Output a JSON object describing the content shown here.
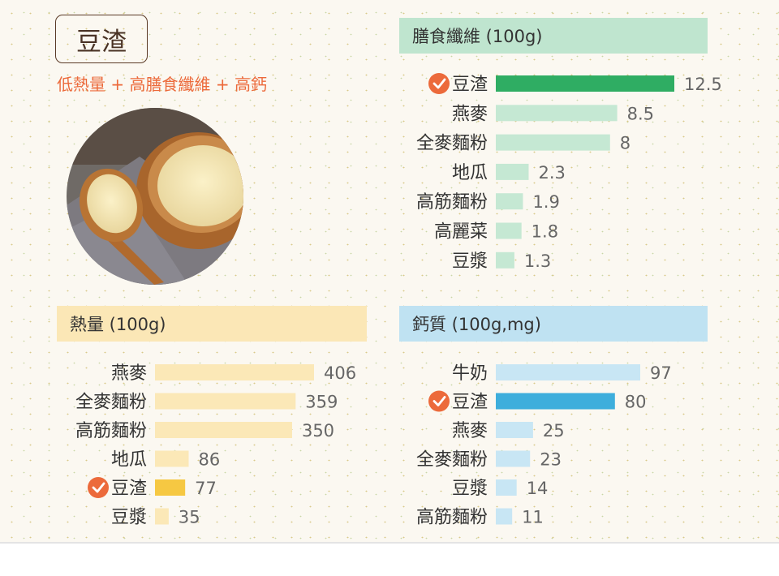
{
  "title": "豆渣",
  "subtitle": "低熱量 + 高膳食纖維 + 高鈣",
  "colors": {
    "highlight_icon": "#ec6a3b",
    "fiber_bar": "#c5e8d3",
    "fiber_highlight": "#2fad63",
    "calorie_bar": "#fbe8b7",
    "calorie_highlight": "#f6c842",
    "calcium_bar": "#c8e6f4",
    "calcium_highlight": "#3eaedc"
  },
  "chart_data": [
    {
      "id": "fiber",
      "type": "bar",
      "orientation": "horizontal",
      "title": "膳食纖維 (100g)",
      "categories": [
        "豆渣",
        "燕麥",
        "全麥麵粉",
        "地瓜",
        "高筋麵粉",
        "高麗菜",
        "豆漿"
      ],
      "values": [
        12.5,
        8.5,
        8,
        2.3,
        1.9,
        1.8,
        1.3
      ],
      "value_labels": [
        "12.5",
        "8.5",
        "8",
        "2.3",
        "1.9",
        "1.8",
        "1.3"
      ],
      "highlight": "豆渣",
      "xlim": [
        0,
        12.5
      ]
    },
    {
      "id": "calories",
      "type": "bar",
      "orientation": "horizontal",
      "title": "熱量 (100g)",
      "categories": [
        "燕麥",
        "全麥麵粉",
        "高筋麵粉",
        "地瓜",
        "豆渣",
        "豆漿"
      ],
      "values": [
        406,
        359,
        350,
        86,
        77,
        35
      ],
      "value_labels": [
        "406",
        "359",
        "350",
        "86",
        "77",
        "35"
      ],
      "highlight": "豆渣",
      "xlim": [
        0,
        406
      ]
    },
    {
      "id": "calcium",
      "type": "bar",
      "orientation": "horizontal",
      "title": "鈣質 (100g,mg)",
      "categories": [
        "牛奶",
        "豆渣",
        "燕麥",
        "全麥麵粉",
        "豆漿",
        "高筋麵粉"
      ],
      "values": [
        97,
        80,
        25,
        23,
        14,
        11
      ],
      "value_labels": [
        "97",
        "80",
        "25",
        "23",
        "14",
        "11"
      ],
      "highlight": "豆渣",
      "xlim": [
        0,
        97
      ]
    }
  ]
}
